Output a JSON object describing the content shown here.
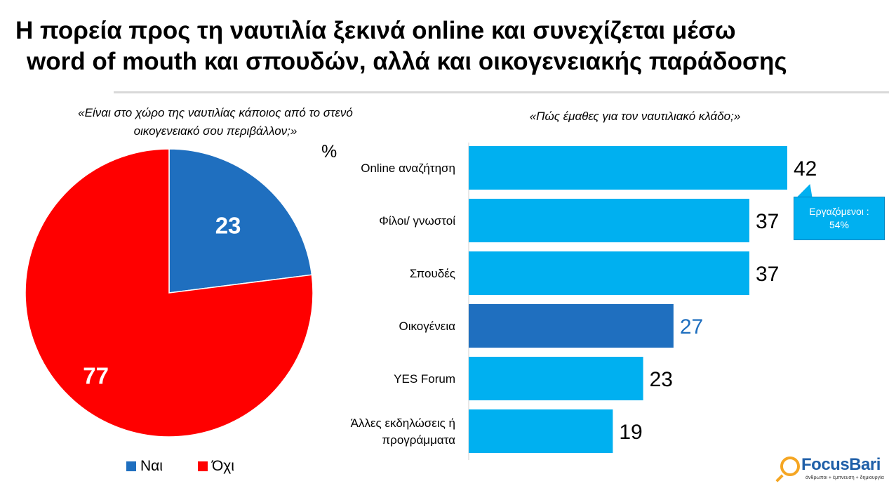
{
  "title_line1": "Η πορεία προς τη ναυτιλία ξεκινά online και συνεχίζεται μέσω",
  "title_line2": "word of mouth και σπουδών, αλλά και οικογενειακής παράδοσης",
  "pie_question_line1": "«Είναι στο χώρο της ναυτιλίας κάποιος από το στενό",
  "pie_question_line2": "οικογενειακό σου περιβάλλον;»",
  "bar_question": "«Πώς έμαθες για τον ναυτιλιακό κλάδο;»",
  "unit_label": "%",
  "callout_line1": "Εργαζόμενοι :",
  "callout_line2": "54%",
  "logo_name": "FocusBari",
  "logo_tagline": "άνθρωποι + έμπνευση + δημιουργία",
  "colors": {
    "blue": "#1f6fbf",
    "red": "#ff0000",
    "bar": "#00b0f0",
    "bar_highlight": "#1f6fbf"
  },
  "chart_data": [
    {
      "type": "pie",
      "title": "«Είναι στο χώρο της ναυτιλίας κάποιος από το στενό οικογενειακό σου περιβάλλον;»",
      "slices": [
        {
          "label": "Ναι",
          "value": 23,
          "color": "#1f6fbf"
        },
        {
          "label": "Όχι",
          "value": 77,
          "color": "#ff0000"
        }
      ],
      "legend": "bottom"
    },
    {
      "type": "bar",
      "orientation": "horizontal",
      "title": "«Πώς έμαθες για τον ναυτιλιακό κλάδο;»",
      "unit": "%",
      "categories": [
        "Online αναζήτηση",
        "Φίλοι/ γνωστοί",
        "Σπουδές",
        "Οικογένεια",
        "YES Forum",
        "Άλλες εκδηλώσεις ή προγράμματα"
      ],
      "values": [
        42,
        37,
        37,
        27,
        23,
        19
      ],
      "highlight_index": 3,
      "xlim": [
        0,
        42
      ]
    }
  ]
}
